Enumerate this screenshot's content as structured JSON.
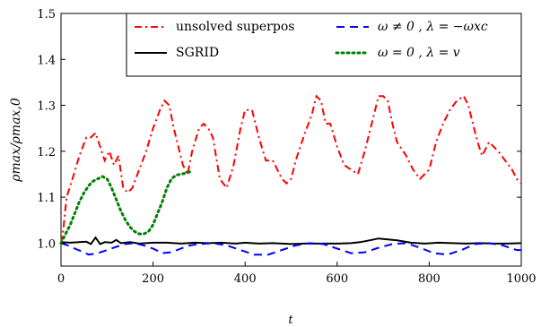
{
  "chart_data": {
    "type": "line",
    "xlabel": "t",
    "ylabel": "ρmax/ρmax,0",
    "xlim": [
      0,
      1000
    ],
    "ylim": [
      0.95,
      1.5
    ],
    "xticks": [
      "0",
      "200",
      "400",
      "600",
      "800",
      "1000"
    ],
    "yticks": [
      "1.0",
      "1.1",
      "1.2",
      "1.3",
      "1.4",
      "1.5"
    ],
    "grid": false,
    "legend_position": "top-right",
    "series": [
      {
        "name": "unsolved superpos",
        "color": "#ff0000",
        "dash": "dashdot",
        "x": [
          0,
          5,
          12,
          25,
          40,
          55,
          65,
          75,
          85,
          95,
          105,
          115,
          125,
          135,
          145,
          155,
          170,
          185,
          200,
          215,
          225,
          235,
          245,
          255,
          265,
          275,
          285,
          300,
          310,
          320,
          330,
          345,
          360,
          375,
          390,
          400,
          415,
          430,
          445,
          460,
          470,
          480,
          490,
          500,
          510,
          530,
          545,
          555,
          565,
          575,
          585,
          600,
          615,
          630,
          645,
          660,
          675,
          690,
          700,
          710,
          720,
          730,
          750,
          765,
          780,
          800,
          815,
          830,
          845,
          860,
          875,
          885,
          895,
          905,
          915,
          930,
          950,
          965,
          980,
          990,
          1000
        ],
        "y": [
          1.0,
          1.03,
          1.1,
          1.14,
          1.19,
          1.23,
          1.23,
          1.24,
          1.21,
          1.18,
          1.2,
          1.17,
          1.19,
          1.12,
          1.11,
          1.12,
          1.16,
          1.2,
          1.25,
          1.29,
          1.31,
          1.3,
          1.25,
          1.21,
          1.17,
          1.15,
          1.2,
          1.25,
          1.26,
          1.25,
          1.23,
          1.14,
          1.12,
          1.17,
          1.25,
          1.29,
          1.29,
          1.23,
          1.18,
          1.18,
          1.16,
          1.14,
          1.13,
          1.14,
          1.18,
          1.24,
          1.28,
          1.32,
          1.31,
          1.26,
          1.26,
          1.21,
          1.17,
          1.16,
          1.15,
          1.2,
          1.26,
          1.32,
          1.32,
          1.31,
          1.26,
          1.22,
          1.19,
          1.16,
          1.14,
          1.16,
          1.22,
          1.26,
          1.29,
          1.31,
          1.32,
          1.3,
          1.26,
          1.22,
          1.19,
          1.22,
          1.2,
          1.18,
          1.16,
          1.14,
          1.13
        ]
      },
      {
        "name": "SGRID",
        "color": "#000000",
        "dash": "solid",
        "x": [
          0,
          20,
          40,
          55,
          65,
          75,
          85,
          95,
          110,
          120,
          130,
          150,
          170,
          200,
          230,
          260,
          290,
          320,
          350,
          380,
          400,
          430,
          460,
          500,
          530,
          560,
          600,
          630,
          650,
          670,
          690,
          710,
          730,
          760,
          790,
          820,
          850,
          880,
          910,
          940,
          970,
          1000
        ],
        "y": [
          1.002,
          1.001,
          1.002,
          1.003,
          0.998,
          1.012,
          0.998,
          1.002,
          1.001,
          1.007,
          1.0,
          1.002,
          0.999,
          1.001,
          1.001,
          0.999,
          1.001,
          1.0,
          1.001,
          0.999,
          1.001,
          0.999,
          1.0,
          0.998,
          0.999,
          0.999,
          0.999,
          1.0,
          1.002,
          1.006,
          1.01,
          1.008,
          1.006,
          1.001,
          0.999,
          1.001,
          1.0,
          0.999,
          1.0,
          0.999,
          0.999,
          1.0
        ]
      },
      {
        "name": "ω ≠ 0 , λ = −ωxc",
        "color": "#0000ff",
        "dash": "dashed",
        "x": [
          0,
          15,
          30,
          45,
          60,
          80,
          100,
          120,
          140,
          160,
          180,
          200,
          220,
          240,
          260,
          280,
          300,
          330,
          360,
          390,
          420,
          450,
          480,
          510,
          540,
          570,
          600,
          630,
          660,
          690,
          720,
          750,
          780,
          810,
          840,
          870,
          900,
          930,
          960,
          990,
          1000
        ],
        "y": [
          1.0,
          0.995,
          0.988,
          0.982,
          0.975,
          0.978,
          0.985,
          0.992,
          0.998,
          1.0,
          0.995,
          0.988,
          0.978,
          0.98,
          0.988,
          0.995,
          0.998,
          1.0,
          0.995,
          0.985,
          0.975,
          0.975,
          0.985,
          0.995,
          1.0,
          0.998,
          0.988,
          0.978,
          0.98,
          0.99,
          0.998,
          1.0,
          0.99,
          0.978,
          0.975,
          0.985,
          0.998,
          1.0,
          0.995,
          0.985,
          0.985
        ]
      },
      {
        "name": "ω = 0 , λ = v",
        "color": "#008000",
        "dash": "dotted",
        "x": [
          0,
          10,
          20,
          30,
          40,
          50,
          60,
          70,
          80,
          90,
          100,
          110,
          120,
          130,
          140,
          150,
          160,
          170,
          180,
          190,
          200,
          210,
          220,
          230,
          240,
          250,
          260,
          270,
          280
        ],
        "y": [
          1.0,
          1.02,
          1.04,
          1.065,
          1.09,
          1.11,
          1.125,
          1.135,
          1.14,
          1.145,
          1.14,
          1.12,
          1.095,
          1.07,
          1.05,
          1.035,
          1.025,
          1.02,
          1.02,
          1.025,
          1.04,
          1.065,
          1.09,
          1.12,
          1.14,
          1.148,
          1.15,
          1.152,
          1.155
        ]
      }
    ]
  }
}
